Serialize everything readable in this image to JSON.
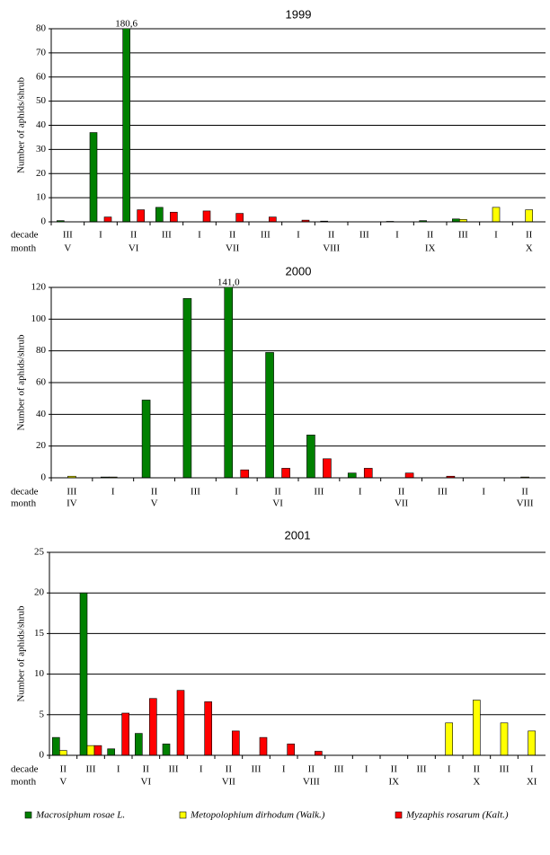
{
  "legend": [
    {
      "name": "Macrosiphum rosae L.",
      "color": "#008000"
    },
    {
      "name": "Metopolophium dirhodum (Walk.)",
      "color": "#ffff00"
    },
    {
      "name": "Myzaphis rosarum (Kalt.)",
      "color": "#ff0000"
    }
  ],
  "chart_data": [
    {
      "type": "bar",
      "title": "1999",
      "y_label": "Number of aphids/shrub",
      "row_labels": [
        "decade",
        "month"
      ],
      "categories": [
        "III",
        "I",
        "II",
        "III",
        "I",
        "II",
        "III",
        "I",
        "II",
        "III",
        "I",
        "II",
        "III",
        "I",
        "II"
      ],
      "months": [
        "V",
        null,
        "VI",
        null,
        null,
        "VII",
        null,
        null,
        "VIII",
        null,
        null,
        "IX",
        null,
        null,
        "X"
      ],
      "ylim": [
        0,
        80
      ],
      "yticks": [
        0,
        10,
        20,
        30,
        40,
        50,
        60,
        70,
        80
      ],
      "grid": true,
      "series": [
        {
          "values": [
            0.5,
            37,
            180.6,
            6,
            0,
            0,
            0,
            0,
            0.3,
            0,
            0.2,
            0.5,
            1.2,
            0,
            0
          ],
          "value_labels": [
            null,
            null,
            "180,6",
            null,
            null,
            null,
            null,
            null,
            null,
            null,
            null,
            null,
            null,
            null,
            null
          ]
        },
        {
          "values": [
            0,
            0,
            0,
            0,
            0,
            0,
            0,
            0,
            0,
            0,
            0,
            0,
            1,
            6,
            5
          ]
        },
        {
          "values": [
            0,
            2,
            5,
            4,
            4.5,
            3.5,
            2,
            0.7,
            0,
            0,
            0,
            0,
            0,
            0,
            0
          ]
        }
      ]
    },
    {
      "type": "bar",
      "title": "2000",
      "y_label": "Number of aphids/shrub",
      "row_labels": [
        "decade",
        "month"
      ],
      "categories": [
        "III",
        "I",
        "II",
        "III",
        "I",
        "II",
        "III",
        "I",
        "II",
        "III",
        "I",
        "II"
      ],
      "months": [
        "IV",
        null,
        "V",
        null,
        null,
        "VI",
        null,
        null,
        "VII",
        null,
        null,
        "VIII"
      ],
      "ylim": [
        0,
        120
      ],
      "yticks": [
        0,
        20,
        40,
        60,
        80,
        100,
        120
      ],
      "grid": true,
      "series": [
        {
          "values": [
            0,
            0.5,
            49,
            113,
            141.0,
            79,
            27,
            3,
            0,
            0,
            0,
            0
          ],
          "value_labels": [
            null,
            null,
            null,
            null,
            "141,0",
            null,
            null,
            null,
            null,
            null,
            null,
            null
          ]
        },
        {
          "values": [
            1,
            0.5,
            0,
            0,
            0,
            0,
            0,
            0,
            0,
            0,
            0,
            0.5
          ]
        },
        {
          "values": [
            0,
            0,
            0,
            0,
            5,
            6,
            12,
            6,
            3,
            1,
            0,
            0
          ]
        }
      ]
    },
    {
      "type": "bar",
      "title": "2001",
      "y_label": "Number of aphids/shrub",
      "row_labels": [
        "decade",
        "month"
      ],
      "categories": [
        "II",
        "III",
        "I",
        "II",
        "III",
        "I",
        "II",
        "III",
        "I",
        "II",
        "III",
        "I",
        "II",
        "III",
        "I",
        "II",
        "III",
        "I"
      ],
      "months": [
        "V",
        null,
        null,
        "VI",
        null,
        null,
        "VII",
        null,
        null,
        "VIII",
        null,
        null,
        "IX",
        null,
        null,
        "X",
        null,
        "XI"
      ],
      "ylim": [
        0,
        25
      ],
      "yticks": [
        0,
        5,
        10,
        15,
        20,
        25
      ],
      "grid": true,
      "series": [
        {
          "values": [
            2.2,
            20,
            0.8,
            2.7,
            1.4,
            0,
            0,
            0,
            0,
            0,
            0,
            0,
            0,
            0,
            0,
            0,
            0,
            0
          ]
        },
        {
          "values": [
            0.6,
            1.2,
            0,
            0,
            0,
            0,
            0,
            0,
            0,
            0,
            0,
            0,
            0,
            0,
            4,
            6.8,
            4,
            3
          ]
        },
        {
          "values": [
            0,
            1.2,
            5.2,
            7,
            8,
            6.6,
            3,
            2.2,
            1.4,
            0.5,
            0,
            0,
            0,
            0,
            0,
            0,
            0,
            0
          ]
        }
      ]
    }
  ]
}
